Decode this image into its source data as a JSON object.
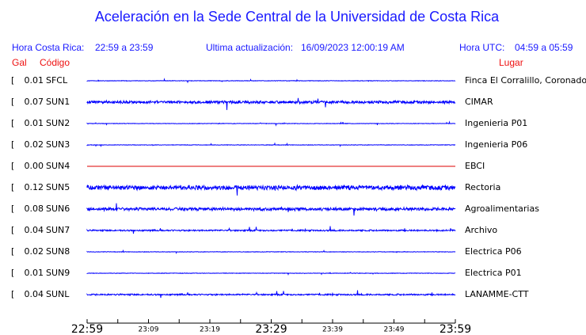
{
  "header": {
    "title": "Aceleración en la Sede Central de la Universidad de Costa Rica",
    "local_label": "Hora Costa Rica:",
    "local_range": "22:59 a 23:59",
    "update_label": "Ultima actualización:",
    "update_value": "16/09/2023 12:00:19 AM",
    "utc_label": "Hora UTC:",
    "utc_range": "04:59 a 05:59",
    "gal_label": "Gal",
    "code_label": "Código",
    "place_label": "Lugar"
  },
  "stations": [
    {
      "gal": "0.01",
      "code": "SFCL",
      "place": "Finca El Corralillo, Coronado",
      "color": "#0000ff"
    },
    {
      "gal": "0.07",
      "code": "SUN1",
      "place": "CIMAR",
      "color": "#0000ff"
    },
    {
      "gal": "0.01",
      "code": "SUN2",
      "place": "Ingenieria P01",
      "color": "#0000ff"
    },
    {
      "gal": "0.02",
      "code": "SUN3",
      "place": "Ingenieria P06",
      "color": "#0000ff"
    },
    {
      "gal": "0.00",
      "code": "SUN4",
      "place": "EBCI",
      "color": "#dd0000"
    },
    {
      "gal": "0.12",
      "code": "SUN5",
      "place": "Rectoria",
      "color": "#0000ff"
    },
    {
      "gal": "0.08",
      "code": "SUN6",
      "place": "Agroalimentarias",
      "color": "#0000ff"
    },
    {
      "gal": "0.04",
      "code": "SUN7",
      "place": "Archivo",
      "color": "#0000ff"
    },
    {
      "gal": "0.02",
      "code": "SUN8",
      "place": "Electrica P06",
      "color": "#0000ff"
    },
    {
      "gal": "0.01",
      "code": "SUN9",
      "place": "Electrica P01",
      "color": "#0000ff"
    },
    {
      "gal": "0.04",
      "code": "SUNL",
      "place": "LANAMME-CTT",
      "color": "#0000ff"
    }
  ],
  "time_axis": [
    "22:59",
    "23:09",
    "23:19",
    "23:29",
    "23:39",
    "23:49",
    "23:59"
  ]
}
